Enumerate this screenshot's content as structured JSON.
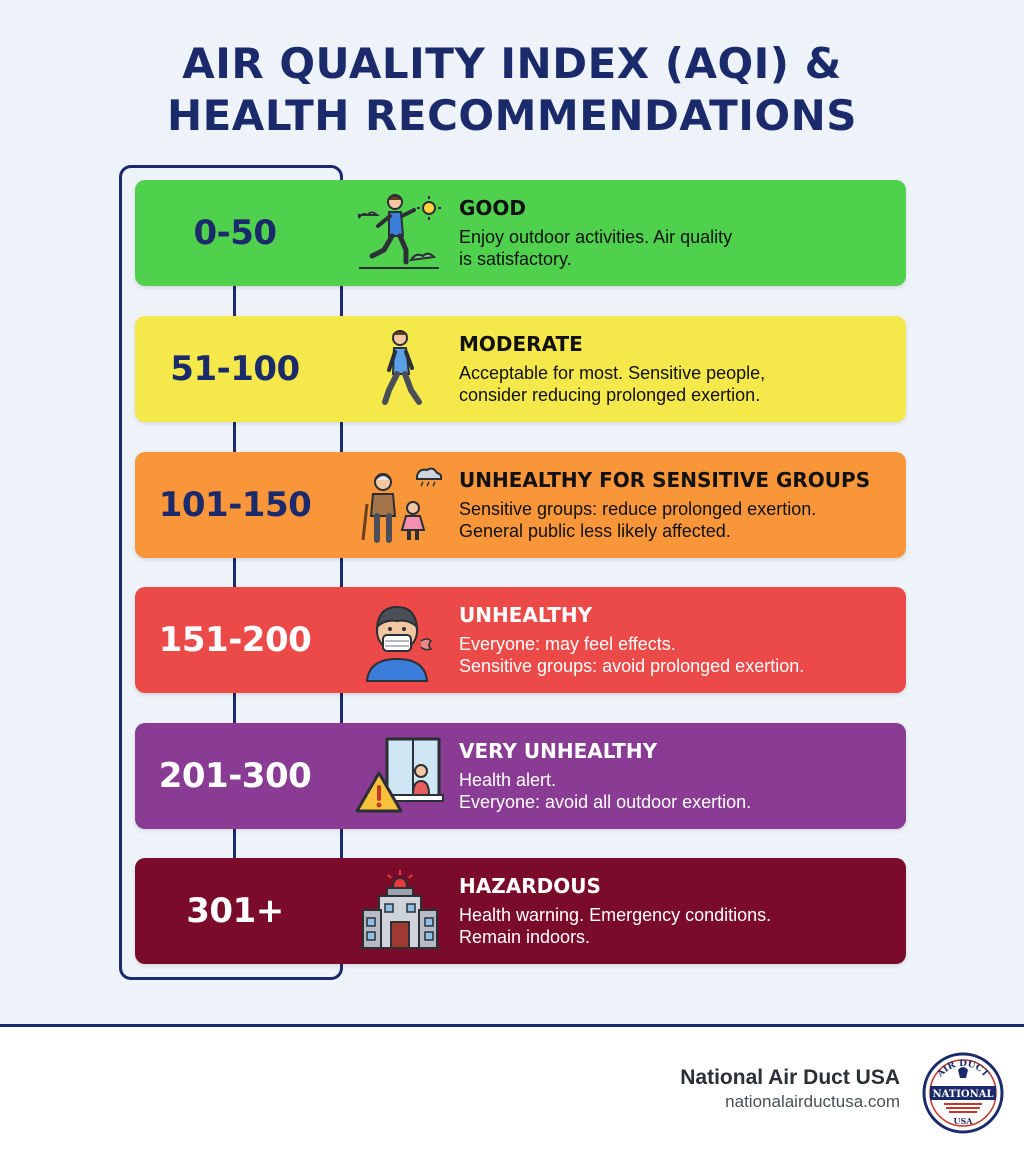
{
  "title_line1": "AIR QUALITY INDEX (AQI) &",
  "title_line2": "HEALTH RECOMMENDATIONS",
  "levels": [
    {
      "range": "0-50",
      "category": "GOOD",
      "line1": "Enjoy outdoor activities. Air quality",
      "line2": "is satisfactory.",
      "bg": "#50d14e",
      "range_color": "#1b2a6b",
      "text_color": "#111111",
      "icon": "running-person-icon"
    },
    {
      "range": "51-100",
      "category": "MODERATE",
      "line1": "Acceptable for most. Sensitive people,",
      "line2": "consider reducing prolonged exertion.",
      "bg": "#f4e84a",
      "range_color": "#1b2a6b",
      "text_color": "#111111",
      "icon": "walking-person-icon"
    },
    {
      "range": "101-150",
      "category": "UNHEALTHY FOR SENSITIVE GROUPS",
      "line1": "Sensitive groups: reduce prolonged exertion.",
      "line2": "General public less likely affected.",
      "bg": "#f9963a",
      "range_color": "#1b2a6b",
      "text_color": "#111111",
      "icon": "elderly-and-child-icon"
    },
    {
      "range": "151-200",
      "category": "UNHEALTHY",
      "line1": "Everyone: may feel effects.",
      "line2": "Sensitive groups: avoid prolonged exertion.",
      "bg": "#ec4a48",
      "range_color": "#ffffff",
      "text_color": "#ffffff",
      "icon": "masked-person-icon"
    },
    {
      "range": "201-300",
      "category": "VERY UNHEALTHY",
      "line1": "Health alert.",
      "line2": "Everyone: avoid all outdoor exertion.",
      "bg": "#8a3c94",
      "range_color": "#ffffff",
      "text_color": "#ffffff",
      "icon": "warning-window-icon"
    },
    {
      "range": "301+",
      "category": "HAZARDOUS",
      "line1": "Health warning. Emergency conditions.",
      "line2": "Remain indoors.",
      "bg": "#7a0b2a",
      "range_color": "#ffffff",
      "text_color": "#ffffff",
      "icon": "emergency-building-icon"
    }
  ],
  "footer": {
    "brand": "National Air Duct USA",
    "url": "nationalairductusa.com",
    "logo_text_top": "AIR DUCT",
    "logo_text_mid": "NATIONAL",
    "logo_text_bottom": "USA"
  }
}
